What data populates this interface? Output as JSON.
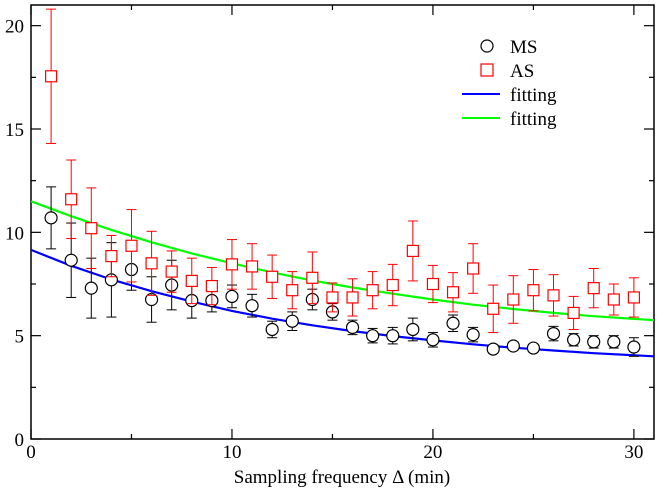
{
  "chart_data": {
    "type": "scatter",
    "title": "",
    "xlabel": "Sampling frequency Δ (min)",
    "ylabel": "",
    "xlim": [
      0,
      31
    ],
    "ylim": [
      0,
      21
    ],
    "xticks": [
      0,
      10,
      20,
      30
    ],
    "yticks": [
      0,
      5,
      10,
      15,
      20
    ],
    "x_tick_labels": [
      "0",
      "10",
      "20",
      "30"
    ],
    "y_tick_labels": [
      "0",
      "5",
      "10",
      "15",
      "20"
    ],
    "grid": false,
    "legend_position": "top-right",
    "colors": {
      "ms": "#000000",
      "as": "#ff0000",
      "fit_ms": "#0000ff",
      "fit_as": "#00ff00",
      "axis": "#000000"
    },
    "series": [
      {
        "name": "MS",
        "marker": "circle",
        "color": "#000000",
        "x": [
          1,
          2,
          3,
          4,
          5,
          6,
          7,
          8,
          9,
          10,
          11,
          12,
          13,
          14,
          15,
          16,
          17,
          18,
          19,
          20,
          21,
          22,
          23,
          24,
          25,
          26,
          27,
          28,
          29,
          30
        ],
        "y": [
          10.7,
          8.65,
          7.3,
          7.7,
          8.2,
          6.75,
          7.45,
          6.7,
          6.7,
          6.9,
          6.45,
          5.3,
          5.7,
          6.75,
          6.15,
          5.4,
          5.0,
          5.0,
          5.3,
          4.8,
          5.6,
          5.05,
          4.35,
          4.5,
          4.4,
          5.1,
          4.8,
          4.7,
          4.7,
          4.45
        ],
        "err": [
          1.5,
          1.8,
          1.45,
          1.8,
          1.0,
          1.1,
          1.2,
          0.85,
          0.55,
          0.55,
          0.55,
          0.4,
          0.45,
          0.5,
          0.4,
          0.35,
          0.35,
          0.4,
          0.55,
          0.35,
          0.4,
          0.35,
          0.2,
          0.2,
          0.15,
          0.35,
          0.3,
          0.3,
          0.3,
          0.45
        ]
      },
      {
        "name": "AS",
        "marker": "square",
        "color": "#ff0000",
        "x": [
          1,
          2,
          3,
          4,
          5,
          6,
          7,
          8,
          9,
          10,
          11,
          12,
          13,
          14,
          15,
          16,
          17,
          18,
          19,
          20,
          21,
          22,
          23,
          24,
          25,
          26,
          27,
          28,
          29,
          30
        ],
        "y": [
          17.55,
          11.6,
          10.2,
          8.85,
          9.35,
          8.5,
          8.1,
          7.65,
          7.4,
          8.45,
          8.35,
          7.85,
          7.2,
          7.8,
          6.85,
          6.85,
          7.2,
          7.45,
          9.1,
          7.5,
          7.1,
          8.25,
          6.3,
          6.75,
          7.2,
          6.95,
          6.1,
          7.3,
          6.75,
          6.85
        ],
        "err": [
          3.25,
          1.9,
          1.95,
          1.0,
          1.75,
          1.55,
          1.0,
          1.1,
          0.9,
          1.2,
          1.1,
          1.05,
          0.9,
          1.25,
          0.7,
          0.9,
          0.9,
          1.0,
          1.45,
          0.9,
          0.95,
          1.2,
          1.15,
          1.15,
          1.0,
          1.0,
          0.8,
          0.95,
          0.75,
          0.95
        ]
      },
      {
        "name": "fitting",
        "type": "line",
        "color": "#0000ff",
        "x": [
          0,
          2,
          4,
          6,
          8,
          10,
          12,
          14,
          16,
          18,
          20,
          22,
          24,
          26,
          28,
          31
        ],
        "y": [
          9.15,
          8.38,
          7.72,
          7.15,
          6.65,
          6.2,
          5.82,
          5.5,
          5.22,
          4.98,
          4.77,
          4.58,
          4.42,
          4.28,
          4.15,
          4.0
        ]
      },
      {
        "name": "fitting",
        "type": "line",
        "color": "#00ff00",
        "x": [
          0,
          2,
          4,
          6,
          8,
          10,
          12,
          14,
          16,
          18,
          20,
          22,
          24,
          26,
          28,
          31
        ],
        "y": [
          11.5,
          10.78,
          10.12,
          9.52,
          8.98,
          8.5,
          8.06,
          7.67,
          7.33,
          7.03,
          6.75,
          6.5,
          6.29,
          6.1,
          5.94,
          5.75
        ]
      }
    ]
  }
}
